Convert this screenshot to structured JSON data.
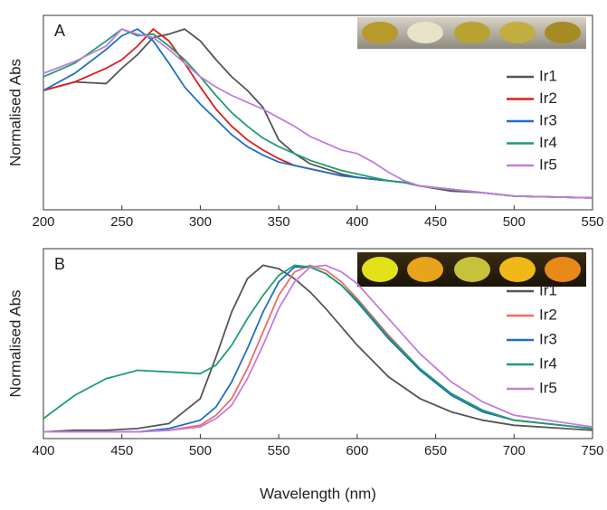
{
  "chart_data": [
    {
      "type": "line",
      "panel_label": "A",
      "y_label": "Normalised Abs",
      "x": [
        200,
        220,
        240,
        250,
        260,
        270,
        280,
        290,
        300,
        310,
        320,
        330,
        340,
        350,
        360,
        370,
        380,
        390,
        400,
        410,
        420,
        430,
        440,
        460,
        480,
        500,
        550
      ],
      "xlim": [
        200,
        550
      ],
      "xticks": [
        200,
        250,
        300,
        350,
        400,
        450,
        500,
        550
      ],
      "ylim": [
        -0.06,
        1.08
      ],
      "series": [
        {
          "name": "Ir1",
          "color": "#555555",
          "values": [
            0.64,
            0.69,
            0.68,
            0.77,
            0.85,
            0.95,
            0.97,
            1.0,
            0.93,
            0.82,
            0.72,
            0.64,
            0.54,
            0.35,
            0.27,
            0.21,
            0.18,
            0.15,
            0.13,
            0.12,
            0.11,
            0.1,
            0.08,
            0.05,
            0.04,
            0.02,
            0.01
          ]
        },
        {
          "name": "Ir2",
          "color": "#e31a1c",
          "values": [
            0.64,
            0.69,
            0.77,
            0.82,
            0.9,
            1.0,
            0.93,
            0.8,
            0.66,
            0.53,
            0.43,
            0.35,
            0.29,
            0.24,
            0.2,
            0.18,
            0.16,
            0.14,
            0.13,
            0.12,
            0.11,
            0.1,
            0.08,
            0.06,
            0.04,
            0.02,
            0.01
          ]
        },
        {
          "name": "Ir3",
          "color": "#1f6fc9",
          "values": [
            0.64,
            0.74,
            0.88,
            0.96,
            1.0,
            0.93,
            0.8,
            0.66,
            0.56,
            0.47,
            0.38,
            0.31,
            0.26,
            0.22,
            0.2,
            0.18,
            0.16,
            0.14,
            0.13,
            0.12,
            0.11,
            0.1,
            0.08,
            0.06,
            0.04,
            0.02,
            0.01
          ]
        },
        {
          "name": "Ir4",
          "color": "#1f9e6a",
          "values": [
            0.72,
            0.8,
            0.93,
            1.0,
            0.96,
            0.97,
            0.9,
            0.82,
            0.72,
            0.61,
            0.51,
            0.43,
            0.36,
            0.31,
            0.27,
            0.23,
            0.2,
            0.17,
            0.15,
            0.13,
            0.11,
            0.1,
            0.08,
            0.06,
            0.04,
            0.02,
            0.01
          ]
        },
        {
          "name": "Ir5",
          "color": "#c27ce0",
          "values": [
            0.74,
            0.81,
            0.9,
            1.0,
            0.97,
            0.95,
            0.88,
            0.8,
            0.72,
            0.66,
            0.61,
            0.57,
            0.53,
            0.48,
            0.43,
            0.37,
            0.33,
            0.29,
            0.27,
            0.22,
            0.16,
            0.11,
            0.08,
            0.06,
            0.04,
            0.02,
            0.01
          ]
        }
      ]
    },
    {
      "type": "line",
      "panel_label": "B",
      "y_label": "Normalised Abs",
      "x_label": "Wavelength (nm)",
      "x": [
        400,
        420,
        440,
        460,
        480,
        500,
        510,
        520,
        530,
        540,
        550,
        560,
        570,
        580,
        590,
        600,
        620,
        640,
        660,
        680,
        700,
        750
      ],
      "xlim": [
        400,
        750
      ],
      "xticks": [
        400,
        450,
        500,
        550,
        600,
        650,
        700,
        750
      ],
      "ylim": [
        -0.04,
        1.1
      ],
      "series": [
        {
          "name": "Ir1",
          "color": "#555555",
          "values": [
            0.0,
            0.01,
            0.01,
            0.02,
            0.05,
            0.2,
            0.45,
            0.72,
            0.92,
            1.0,
            0.98,
            0.92,
            0.84,
            0.74,
            0.63,
            0.52,
            0.33,
            0.2,
            0.12,
            0.07,
            0.04,
            0.01
          ]
        },
        {
          "name": "Ir2",
          "color": "#f06a6a",
          "values": [
            0,
            0,
            0,
            0,
            0.01,
            0.04,
            0.1,
            0.2,
            0.38,
            0.6,
            0.82,
            0.96,
            1.0,
            0.97,
            0.9,
            0.8,
            0.58,
            0.38,
            0.23,
            0.13,
            0.07,
            0.02
          ]
        },
        {
          "name": "Ir3",
          "color": "#1f6fc9",
          "values": [
            0,
            0,
            0,
            0,
            0.02,
            0.07,
            0.15,
            0.3,
            0.5,
            0.72,
            0.9,
            0.99,
            0.99,
            0.95,
            0.88,
            0.78,
            0.56,
            0.37,
            0.22,
            0.12,
            0.07,
            0.02
          ]
        },
        {
          "name": "Ir4",
          "color": "#1f9e6a",
          "values": [
            0.08,
            0.22,
            0.32,
            0.37,
            0.36,
            0.35,
            0.4,
            0.52,
            0.68,
            0.82,
            0.94,
            1.0,
            0.99,
            0.95,
            0.88,
            0.79,
            0.57,
            0.38,
            0.23,
            0.13,
            0.07,
            0.02
          ]
        },
        {
          "name": "Ir5",
          "color": "#c27ce0",
          "values": [
            0,
            0,
            0,
            0,
            0.01,
            0.03,
            0.08,
            0.16,
            0.32,
            0.52,
            0.74,
            0.9,
            0.99,
            1.0,
            0.96,
            0.89,
            0.68,
            0.47,
            0.3,
            0.18,
            0.1,
            0.03
          ]
        }
      ]
    }
  ]
}
